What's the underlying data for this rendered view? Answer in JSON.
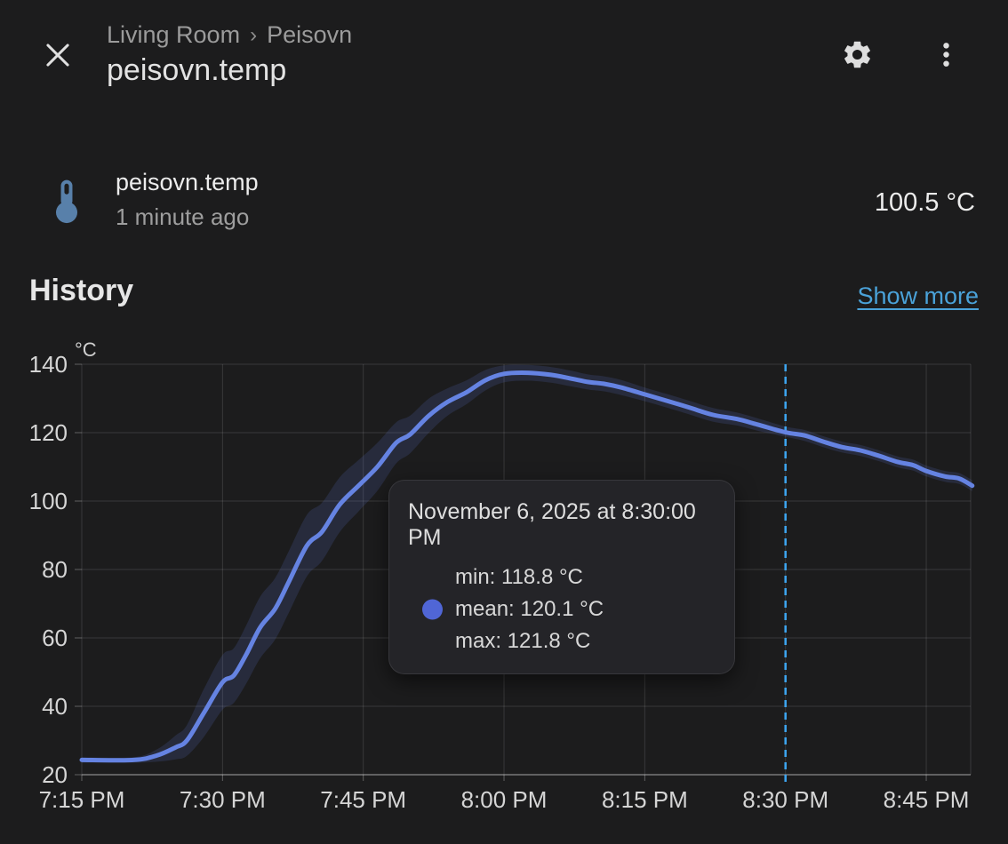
{
  "header": {
    "breadcrumb": {
      "area": "Living Room",
      "separator": "›",
      "device": "Peisovn"
    },
    "title": "peisovn.temp"
  },
  "entity": {
    "name": "peisovn.temp",
    "last_changed": "1 minute ago",
    "value": "100.5 °C",
    "icon": "thermometer-icon",
    "icon_color": "#5880aa"
  },
  "history": {
    "heading": "History",
    "show_more_label": "Show more",
    "link_color": "#4aa2d9"
  },
  "tooltip": {
    "title": "November 6, 2025 at 8:30:00 PM",
    "min_label": "min: 118.8 °C",
    "mean_label": "mean: 120.1 °C",
    "max_label": "max: 121.8 °C",
    "marker_color": "#5066d6"
  },
  "chart_data": {
    "type": "line",
    "title": "History",
    "ylabel": "°C",
    "unit": "°C",
    "ylim": [
      20,
      140
    ],
    "y_ticks": [
      140,
      120,
      100,
      80,
      60,
      40,
      20
    ],
    "x_ticks": [
      {
        "label": "7:15 PM",
        "minute": 0
      },
      {
        "label": "7:30 PM",
        "minute": 15
      },
      {
        "label": "7:45 PM",
        "minute": 30
      },
      {
        "label": "8:00 PM",
        "minute": 45
      },
      {
        "label": "8:15 PM",
        "minute": 60
      },
      {
        "label": "8:30 PM",
        "minute": 75
      },
      {
        "label": "8:45 PM",
        "minute": 90
      }
    ],
    "cursor": {
      "label": "8:30 PM",
      "minute": 75,
      "color": "#3da5f0"
    },
    "legend_position": "none",
    "grid": true,
    "line_color": "#6583e2",
    "band_color": "rgba(99,127,221,0.16)",
    "series": [
      {
        "name": "mean (with min-max band)",
        "points": [
          {
            "t": 0,
            "mean": 24.3,
            "min": 23.5,
            "max": 25.1
          },
          {
            "t": 5.5,
            "mean": 24.3,
            "min": 23.5,
            "max": 25.1
          },
          {
            "t": 8,
            "mean": 25.6,
            "min": 23.8,
            "max": 27.4
          },
          {
            "t": 10,
            "mean": 28,
            "min": 24.5,
            "max": 31.5
          },
          {
            "t": 11.2,
            "mean": 30,
            "min": 25.5,
            "max": 34.5
          },
          {
            "t": 13,
            "mean": 38,
            "min": 31,
            "max": 45
          },
          {
            "t": 15,
            "mean": 47,
            "min": 39,
            "max": 55
          },
          {
            "t": 16.2,
            "mean": 49,
            "min": 41,
            "max": 57
          },
          {
            "t": 17.5,
            "mean": 55,
            "min": 46.5,
            "max": 63.5
          },
          {
            "t": 19,
            "mean": 63,
            "min": 54,
            "max": 72
          },
          {
            "t": 20.6,
            "mean": 68.5,
            "min": 59.5,
            "max": 77.5
          },
          {
            "t": 22,
            "mean": 76,
            "min": 67,
            "max": 85
          },
          {
            "t": 24,
            "mean": 87,
            "min": 78,
            "max": 96
          },
          {
            "t": 25.6,
            "mean": 91,
            "min": 82.5,
            "max": 99.5
          },
          {
            "t": 27.5,
            "mean": 99,
            "min": 91,
            "max": 107
          },
          {
            "t": 29.5,
            "mean": 104.5,
            "min": 97,
            "max": 112
          },
          {
            "t": 31.5,
            "mean": 110,
            "min": 103,
            "max": 117
          },
          {
            "t": 33.5,
            "mean": 117,
            "min": 111,
            "max": 123
          },
          {
            "t": 35,
            "mean": 119.5,
            "min": 114,
            "max": 125
          },
          {
            "t": 37,
            "mean": 125,
            "min": 120,
            "max": 130
          },
          {
            "t": 39,
            "mean": 129,
            "min": 125,
            "max": 133
          },
          {
            "t": 41,
            "mean": 131.8,
            "min": 128.3,
            "max": 135.3
          },
          {
            "t": 43,
            "mean": 135.3,
            "min": 132.3,
            "max": 138.3
          },
          {
            "t": 45,
            "mean": 137.2,
            "min": 134.7,
            "max": 139.7
          },
          {
            "t": 47.5,
            "mean": 137.5,
            "min": 135.2,
            "max": 139.8
          },
          {
            "t": 50,
            "mean": 136.9,
            "min": 134.6,
            "max": 139.2
          },
          {
            "t": 52,
            "mean": 135.9,
            "min": 133.6,
            "max": 138.2
          },
          {
            "t": 54,
            "mean": 134.8,
            "min": 132.6,
            "max": 137
          },
          {
            "t": 55.6,
            "mean": 134.3,
            "min": 132.1,
            "max": 136.5
          },
          {
            "t": 57.5,
            "mean": 133.2,
            "min": 131,
            "max": 135.4
          },
          {
            "t": 60,
            "mean": 131.2,
            "min": 129.2,
            "max": 133.2
          },
          {
            "t": 62.5,
            "mean": 129.2,
            "min": 127.2,
            "max": 131.2
          },
          {
            "t": 64.8,
            "mean": 127.3,
            "min": 125.3,
            "max": 129.3
          },
          {
            "t": 67.3,
            "mean": 125.2,
            "min": 123.2,
            "max": 127.2
          },
          {
            "t": 69.8,
            "mean": 124,
            "min": 122.1,
            "max": 125.9
          },
          {
            "t": 72,
            "mean": 122.4,
            "min": 120.6,
            "max": 124.2
          },
          {
            "t": 75,
            "mean": 120.1,
            "min": 118.8,
            "max": 121.8
          },
          {
            "t": 77,
            "mean": 119.2,
            "min": 117.6,
            "max": 120.8
          },
          {
            "t": 79,
            "mean": 117.4,
            "min": 115.8,
            "max": 119
          },
          {
            "t": 81,
            "mean": 115.8,
            "min": 114.2,
            "max": 117.4
          },
          {
            "t": 83,
            "mean": 114.8,
            "min": 113.2,
            "max": 116.4
          },
          {
            "t": 85,
            "mean": 113.2,
            "min": 111.6,
            "max": 114.8
          },
          {
            "t": 87,
            "mean": 111.4,
            "min": 109.8,
            "max": 113
          },
          {
            "t": 88.6,
            "mean": 110.5,
            "min": 108.9,
            "max": 112.1
          },
          {
            "t": 90,
            "mean": 108.8,
            "min": 107.2,
            "max": 110.4
          },
          {
            "t": 92,
            "mean": 107.2,
            "min": 105.6,
            "max": 108.8
          },
          {
            "t": 93.5,
            "mean": 106.6,
            "min": 105,
            "max": 108.2
          },
          {
            "t": 94.9,
            "mean": 104.5,
            "min": 102.9,
            "max": 106.1
          }
        ]
      }
    ]
  }
}
